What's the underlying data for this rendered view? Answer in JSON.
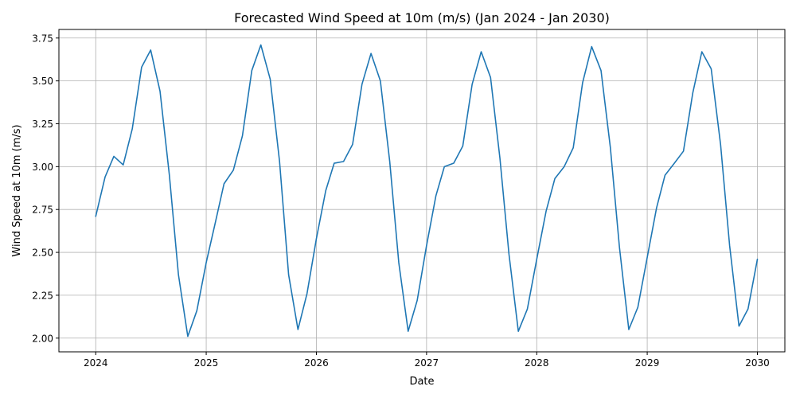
{
  "chart_data": {
    "type": "line",
    "title": "Forecasted Wind Speed at 10m (m/s) (Jan 2024 - Jan 2030)",
    "xlabel": "Date",
    "ylabel": "Wind Speed at 10m (m/s)",
    "grid": true,
    "x_ticks": [
      {
        "label": "2024",
        "value": "2024-01-01"
      },
      {
        "label": "2025",
        "value": "2025-01-01"
      },
      {
        "label": "2026",
        "value": "2026-01-01"
      },
      {
        "label": "2027",
        "value": "2027-01-01"
      },
      {
        "label": "2028",
        "value": "2028-01-01"
      },
      {
        "label": "2029",
        "value": "2029-01-01"
      },
      {
        "label": "2030",
        "value": "2030-01-01"
      }
    ],
    "y_ticks": [
      {
        "label": "2.00",
        "value": 2.0
      },
      {
        "label": "2.25",
        "value": 2.25
      },
      {
        "label": "2.50",
        "value": 2.5
      },
      {
        "label": "2.75",
        "value": 2.75
      },
      {
        "label": "3.00",
        "value": 3.0
      },
      {
        "label": "3.25",
        "value": 3.25
      },
      {
        "label": "3.50",
        "value": 3.5
      },
      {
        "label": "3.75",
        "value": 3.75
      }
    ],
    "xlim": [
      "2023-09-01",
      "2030-04-02"
    ],
    "ylim": [
      1.92,
      3.8
    ],
    "series": [
      {
        "color": "#1f77b4",
        "x": [
          "2024-01-01",
          "2024-02-01",
          "2024-03-01",
          "2024-04-01",
          "2024-05-01",
          "2024-06-01",
          "2024-07-01",
          "2024-08-01",
          "2024-09-01",
          "2024-10-01",
          "2024-11-01",
          "2024-12-01",
          "2025-01-01",
          "2025-02-01",
          "2025-03-01",
          "2025-04-01",
          "2025-05-01",
          "2025-06-01",
          "2025-07-01",
          "2025-08-01",
          "2025-09-01",
          "2025-10-01",
          "2025-11-01",
          "2025-12-01",
          "2026-01-01",
          "2026-02-01",
          "2026-03-01",
          "2026-04-01",
          "2026-05-01",
          "2026-06-01",
          "2026-07-01",
          "2026-08-01",
          "2026-09-01",
          "2026-10-01",
          "2026-11-01",
          "2026-12-01",
          "2027-01-01",
          "2027-02-01",
          "2027-03-01",
          "2027-04-01",
          "2027-05-01",
          "2027-06-01",
          "2027-07-01",
          "2027-08-01",
          "2027-09-01",
          "2027-10-01",
          "2027-11-01",
          "2027-12-01",
          "2028-01-01",
          "2028-02-01",
          "2028-03-01",
          "2028-04-01",
          "2028-05-01",
          "2028-06-01",
          "2028-07-01",
          "2028-08-01",
          "2028-09-01",
          "2028-10-01",
          "2028-11-01",
          "2028-12-01",
          "2029-01-01",
          "2029-02-01",
          "2029-03-01",
          "2029-04-01",
          "2029-05-01",
          "2029-06-01",
          "2029-07-01",
          "2029-08-01",
          "2029-09-01",
          "2029-10-01",
          "2029-11-01",
          "2029-12-01",
          "2030-01-01"
        ],
        "y": [
          2.71,
          2.94,
          3.06,
          3.01,
          3.22,
          3.58,
          3.68,
          3.44,
          2.95,
          2.37,
          2.01,
          2.16,
          2.44,
          2.68,
          2.9,
          2.98,
          3.18,
          3.56,
          3.71,
          3.51,
          3.03,
          2.37,
          2.05,
          2.26,
          2.58,
          2.86,
          3.02,
          3.03,
          3.13,
          3.48,
          3.66,
          3.5,
          3.03,
          2.44,
          2.04,
          2.22,
          2.54,
          2.83,
          3.0,
          3.02,
          3.12,
          3.48,
          3.67,
          3.52,
          3.05,
          2.49,
          2.04,
          2.17,
          2.46,
          2.74,
          2.93,
          3.0,
          3.11,
          3.49,
          3.7,
          3.56,
          3.11,
          2.53,
          2.05,
          2.18,
          2.47,
          2.76,
          2.95,
          3.02,
          3.09,
          3.43,
          3.67,
          3.57,
          3.13,
          2.54,
          2.07,
          2.17,
          2.46
        ]
      }
    ]
  }
}
